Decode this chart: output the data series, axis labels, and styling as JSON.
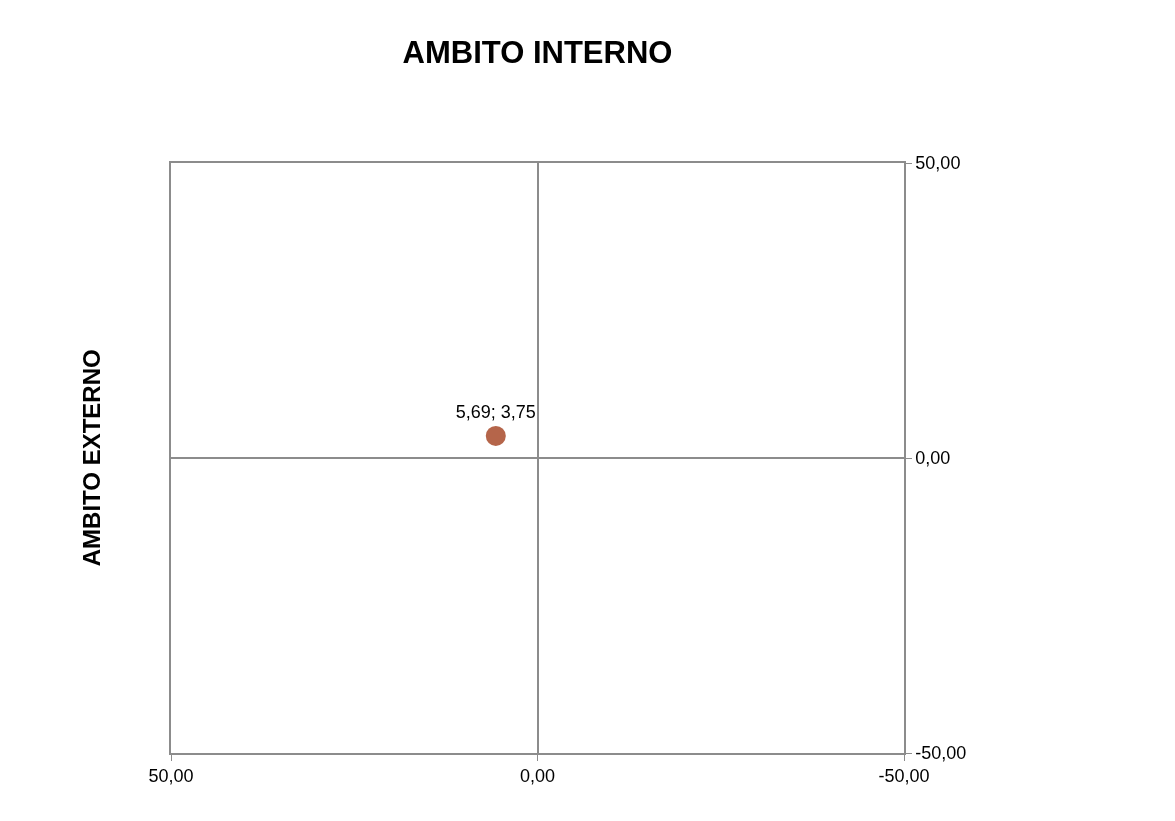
{
  "chart_data": {
    "type": "scatter",
    "title": "AMBITO INTERNO",
    "ylabel": "AMBITO EXTERNO",
    "x": [
      5.69
    ],
    "values": [
      3.75
    ],
    "value_labels": [
      "5,69; 3,75"
    ],
    "color": "#b5654a",
    "marker": "circle",
    "xlim": [
      50,
      -50
    ],
    "xticks": [
      {
        "value": 50,
        "label": "50,00"
      },
      {
        "value": 0,
        "label": "0,00"
      },
      {
        "value": -50,
        "label": "-50,00"
      }
    ],
    "ylim": [
      -50,
      50
    ],
    "yticks": [
      {
        "value": -50,
        "label": "-50,00"
      },
      {
        "value": 0,
        "label": "0,00"
      },
      {
        "value": 50,
        "label": "50,00"
      }
    ],
    "grid": true,
    "legend": false
  }
}
